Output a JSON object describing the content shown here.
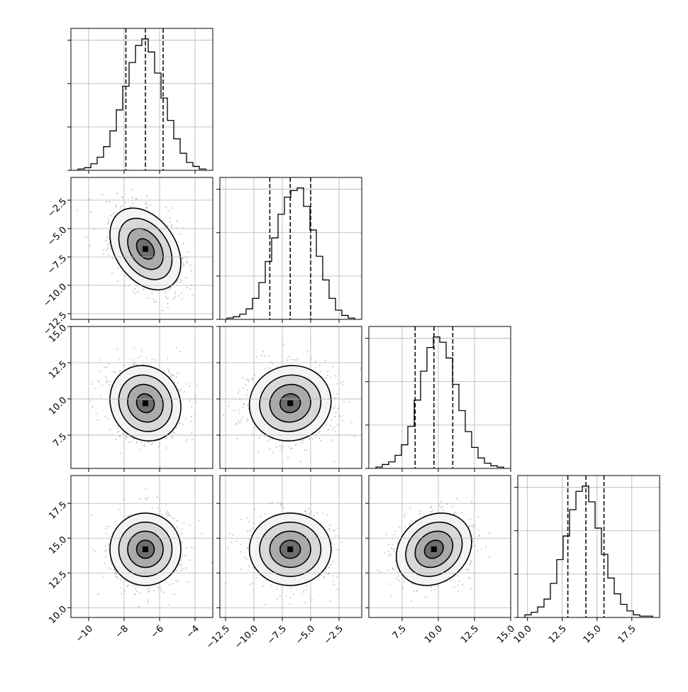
{
  "chart_data": {
    "type": "corner",
    "grid": true,
    "variables": [
      {
        "range": [
          -11,
          -3
        ],
        "ticks": [
          -10,
          -8,
          -6,
          -4
        ],
        "tick_labels": [
          "−10",
          "−8",
          "−6",
          "−4"
        ],
        "quantiles": [
          -7.9,
          -6.8,
          -5.8
        ],
        "mean": -6.8,
        "std": 1.0
      },
      {
        "range": [
          -13,
          -0.5
        ],
        "ticks": [
          -12.5,
          -10.0,
          -7.5,
          -5.0,
          -2.5
        ],
        "tick_labels": [
          "−12.5",
          "−10.0",
          "−7.5",
          "−5.0",
          "−2.5"
        ],
        "quantiles": [
          -8.6,
          -6.8,
          -5.0
        ],
        "mean": -6.8,
        "std": 1.8
      },
      {
        "range": [
          5.2,
          15.0
        ],
        "ticks": [
          7.5,
          10.0,
          12.5,
          15.0
        ],
        "tick_labels": [
          "7.5",
          "10.0",
          "12.5",
          "15.0"
        ],
        "quantiles": [
          8.4,
          9.7,
          11.0
        ],
        "mean": 9.7,
        "std": 1.3
      },
      {
        "range": [
          9.3,
          19.5
        ],
        "ticks": [
          10.0,
          12.5,
          15.0,
          17.5
        ],
        "tick_labels": [
          "10.0",
          "12.5",
          "15.0",
          "17.5"
        ],
        "quantiles": [
          12.9,
          14.2,
          15.5
        ],
        "mean": 14.2,
        "std": 1.3
      }
    ],
    "histograms": [
      {
        "bins": 20,
        "counts": [
          0.01,
          0.02,
          0.05,
          0.1,
          0.18,
          0.3,
          0.46,
          0.64,
          0.82,
          0.95,
          1.0,
          0.9,
          0.74,
          0.55,
          0.38,
          0.24,
          0.13,
          0.06,
          0.03,
          0.01
        ]
      },
      {
        "bins": 20,
        "counts": [
          0.01,
          0.02,
          0.04,
          0.08,
          0.16,
          0.28,
          0.44,
          0.62,
          0.8,
          0.93,
          0.98,
          1.0,
          0.86,
          0.68,
          0.48,
          0.3,
          0.16,
          0.07,
          0.03,
          0.01
        ]
      },
      {
        "bins": 20,
        "counts": [
          0.01,
          0.03,
          0.05,
          0.1,
          0.18,
          0.32,
          0.52,
          0.74,
          0.92,
          1.0,
          0.96,
          0.84,
          0.64,
          0.44,
          0.28,
          0.16,
          0.08,
          0.04,
          0.02,
          0.01
        ]
      },
      {
        "bins": 20,
        "counts": [
          0.02,
          0.04,
          0.08,
          0.14,
          0.26,
          0.44,
          0.62,
          0.82,
          0.96,
          1.0,
          0.88,
          0.68,
          0.48,
          0.3,
          0.18,
          0.1,
          0.05,
          0.02,
          0.01,
          0.01
        ]
      }
    ],
    "correlations": [
      {
        "pair": [
          1,
          0
        ],
        "rho": -0.35
      },
      {
        "pair": [
          2,
          0
        ],
        "rho": -0.1
      },
      {
        "pair": [
          2,
          1
        ],
        "rho": 0.05
      },
      {
        "pair": [
          3,
          0
        ],
        "rho": 0.0
      },
      {
        "pair": [
          3,
          1
        ],
        "rho": 0.0
      },
      {
        "pair": [
          3,
          2
        ],
        "rho": 0.2
      }
    ],
    "contour_levels_sigma": [
      0.5,
      1.0,
      1.5,
      2.0
    ]
  }
}
